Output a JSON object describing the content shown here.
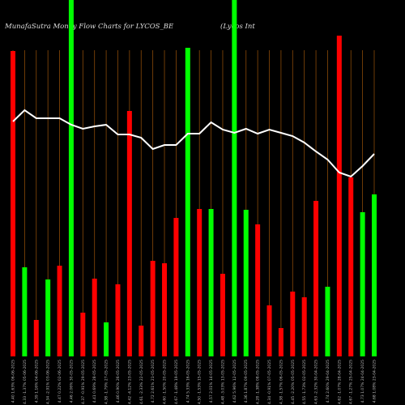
{
  "chart_data": {
    "type": "bar",
    "title": "MunafaSutra  Money Flow  Charts for LYCOS_BE",
    "subtitle": "(Lycos Int",
    "categories": [
      "4.40 1.63% 06-06-2025",
      "4.33 -1.37% 05-06-2025",
      "4.39 1.16% 04-06-2025",
      "4.34 -2.91% 03-06-2025",
      "4.47 0.22% 02-06-2025",
      "4.46 2.06% 30-05-2025",
      "4.37 -0.91% 29-05-2025",
      "4.41 0.69% 28-05-2025",
      "4.38 -1.79% 27-05-2025",
      "4.46 0.90% 26-05-2025",
      "4.42 -4.12% 23-05-2025",
      "4.61 -2.33% 22-05-2025",
      "4.72 2.61% 21-05-2025",
      "4.60 -1.50% 20-05-2025",
      "4.67 -1.48% 19-05-2025",
      "4.74 5.33% 16-05-2025",
      "4.50 -1.53% 15-05-2025",
      "4.57 2.01% 14-05-2025",
      "4.48 -3.03% 13-05-2025",
      "4.62 5.96% 12-05-2025",
      "4.36 1.87% 09-05-2025",
      "4.28 -1.38% 08-05-2025",
      "4.34 -0.91% 07-05-2025",
      "4.38 -1.57% 06-05-2025",
      "4.45 -2.20% 05-05-2025",
      "4.55 -1.73% 02-05-2025",
      "4.63 -2.32% 30-04-2025",
      "4.74 2.60% 29-04-2025",
      "4.62 -1.07% 28-04-2025",
      "4.67 -1.27% 25-04-2025",
      "4.73 1.07% 24-04-2025",
      "4.68 1.08% 23-04-2025"
    ],
    "series": [
      {
        "values": [
          377,
          110,
          45,
          95,
          112,
          440,
          54,
          96,
          42,
          89,
          303,
          38,
          118,
          115,
          171,
          381,
          182,
          182,
          102,
          440,
          181,
          163,
          63,
          35,
          80,
          73,
          192,
          86,
          396,
          221,
          178,
          200
        ],
        "colors": [
          "#ff0000",
          "#00ff00",
          "#ff0000",
          "#00ff00",
          "#ff0000",
          "#00ff00",
          "#ff0000",
          "#ff0000",
          "#00ff00",
          "#ff0000",
          "#ff0000",
          "#ff0000",
          "#ff0000",
          "#ff0000",
          "#ff0000",
          "#00ff00",
          "#ff0000",
          "#00ff00",
          "#ff0000",
          "#00ff00",
          "#00ff00",
          "#ff0000",
          "#ff0000",
          "#ff0000",
          "#ff0000",
          "#ff0000",
          "#ff0000",
          "#00ff00",
          "#ff0000",
          "#ff0000",
          "#00ff00",
          "#00ff00"
        ]
      },
      {
        "type": "line",
        "color": "#ffffff",
        "values": [
          290,
          304,
          294,
          294,
          294,
          286,
          281,
          284,
          286,
          274,
          274,
          270,
          256,
          261,
          261,
          275,
          275,
          289,
          280,
          276,
          281,
          275,
          280,
          276,
          272,
          264,
          253,
          243,
          227,
          222,
          235,
          250
        ]
      }
    ],
    "ylim": [
      0,
      440
    ]
  }
}
